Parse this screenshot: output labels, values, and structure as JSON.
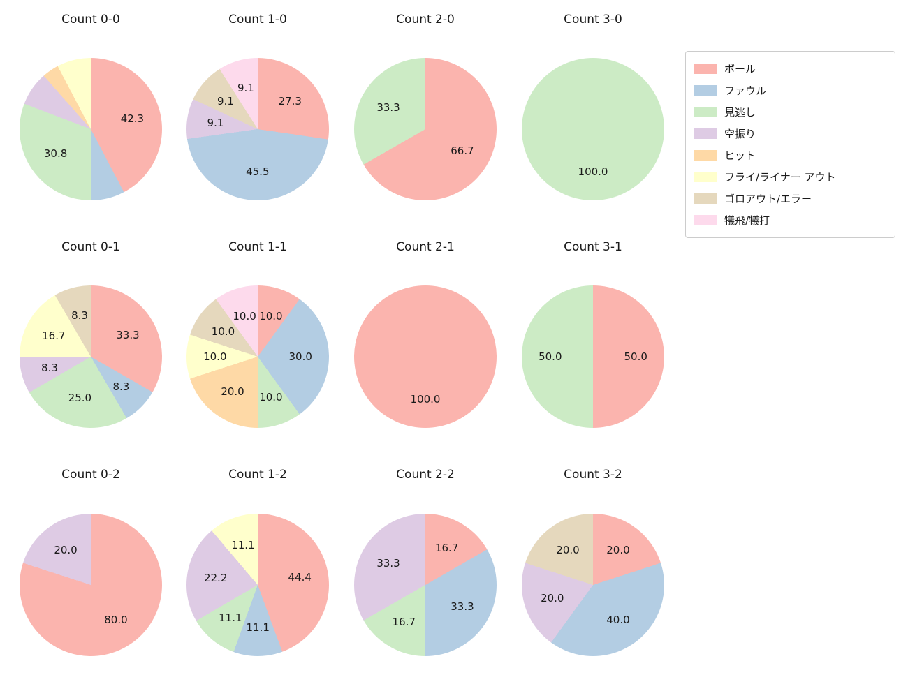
{
  "figure": {
    "background": "#ffffff",
    "text_color": "#1a1a1a"
  },
  "legend": {
    "items": [
      {
        "label": "ボール",
        "color": "#fbb4ae"
      },
      {
        "label": "ファウル",
        "color": "#b3cde3"
      },
      {
        "label": "見逃し",
        "color": "#ccebc5"
      },
      {
        "label": "空振り",
        "color": "#decbe4"
      },
      {
        "label": "ヒット",
        "color": "#fed9a6"
      },
      {
        "label": "フライ/ライナー アウト",
        "color": "#ffffcc"
      },
      {
        "label": "ゴロアウト/エラー",
        "color": "#e5d8bd"
      },
      {
        "label": "犠飛/犠打",
        "color": "#fddaec"
      }
    ]
  },
  "chart_data": [
    {
      "type": "pie",
      "title": "Count 0-0",
      "slices": [
        {
          "category": "ボール",
          "value": 42.3,
          "label": "42.3"
        },
        {
          "category": "ファウル",
          "value": 7.7,
          "label": ""
        },
        {
          "category": "見逃し",
          "value": 30.8,
          "label": "30.8"
        },
        {
          "category": "空振り",
          "value": 7.7,
          "label": ""
        },
        {
          "category": "ヒット",
          "value": 3.8,
          "label": ""
        },
        {
          "category": "フライ/ライナー アウト",
          "value": 7.7,
          "label": ""
        }
      ]
    },
    {
      "type": "pie",
      "title": "Count 1-0",
      "slices": [
        {
          "category": "ボール",
          "value": 27.3,
          "label": "27.3"
        },
        {
          "category": "ファウル",
          "value": 45.5,
          "label": "45.5"
        },
        {
          "category": "空振り",
          "value": 9.1,
          "label": "9.1"
        },
        {
          "category": "ゴロアウト/エラー",
          "value": 9.1,
          "label": "9.1"
        },
        {
          "category": "犠飛/犠打",
          "value": 9.1,
          "label": "9.1"
        }
      ]
    },
    {
      "type": "pie",
      "title": "Count 2-0",
      "slices": [
        {
          "category": "ボール",
          "value": 66.7,
          "label": "66.7"
        },
        {
          "category": "見逃し",
          "value": 33.3,
          "label": "33.3"
        }
      ]
    },
    {
      "type": "pie",
      "title": "Count 3-0",
      "slices": [
        {
          "category": "見逃し",
          "value": 100.0,
          "label": "100.0"
        }
      ]
    },
    {
      "type": "pie",
      "title": "Count 0-1",
      "slices": [
        {
          "category": "ボール",
          "value": 33.3,
          "label": "33.3"
        },
        {
          "category": "ファウル",
          "value": 8.3,
          "label": "8.3"
        },
        {
          "category": "見逃し",
          "value": 25.0,
          "label": "25.0"
        },
        {
          "category": "空振り",
          "value": 8.3,
          "label": "8.3"
        },
        {
          "category": "フライ/ライナー アウト",
          "value": 16.7,
          "label": "16.7"
        },
        {
          "category": "ゴロアウト/エラー",
          "value": 8.3,
          "label": "8.3"
        }
      ]
    },
    {
      "type": "pie",
      "title": "Count 1-1",
      "slices": [
        {
          "category": "ボール",
          "value": 10.0,
          "label": "10.0"
        },
        {
          "category": "ファウル",
          "value": 30.0,
          "label": "30.0"
        },
        {
          "category": "見逃し",
          "value": 10.0,
          "label": "10.0"
        },
        {
          "category": "ヒット",
          "value": 20.0,
          "label": "20.0"
        },
        {
          "category": "フライ/ライナー アウト",
          "value": 10.0,
          "label": "10.0"
        },
        {
          "category": "ゴロアウト/エラー",
          "value": 10.0,
          "label": "10.0"
        },
        {
          "category": "犠飛/犠打",
          "value": 10.0,
          "label": "10.0"
        }
      ]
    },
    {
      "type": "pie",
      "title": "Count 2-1",
      "slices": [
        {
          "category": "ボール",
          "value": 100.0,
          "label": "100.0"
        }
      ]
    },
    {
      "type": "pie",
      "title": "Count 3-1",
      "slices": [
        {
          "category": "ボール",
          "value": 50.0,
          "label": "50.0"
        },
        {
          "category": "見逃し",
          "value": 50.0,
          "label": "50.0"
        }
      ]
    },
    {
      "type": "pie",
      "title": "Count 0-2",
      "slices": [
        {
          "category": "ボール",
          "value": 80.0,
          "label": "80.0"
        },
        {
          "category": "空振り",
          "value": 20.0,
          "label": "20.0"
        }
      ]
    },
    {
      "type": "pie",
      "title": "Count 1-2",
      "slices": [
        {
          "category": "ボール",
          "value": 44.4,
          "label": "44.4"
        },
        {
          "category": "ファウル",
          "value": 11.1,
          "label": "11.1"
        },
        {
          "category": "見逃し",
          "value": 11.1,
          "label": "11.1"
        },
        {
          "category": "空振り",
          "value": 22.2,
          "label": "22.2"
        },
        {
          "category": "フライ/ライナー アウト",
          "value": 11.1,
          "label": "11.1"
        }
      ]
    },
    {
      "type": "pie",
      "title": "Count 2-2",
      "slices": [
        {
          "category": "ボール",
          "value": 16.7,
          "label": "16.7"
        },
        {
          "category": "ファウル",
          "value": 33.3,
          "label": "33.3"
        },
        {
          "category": "見逃し",
          "value": 16.7,
          "label": "16.7"
        },
        {
          "category": "空振り",
          "value": 33.3,
          "label": "33.3"
        }
      ]
    },
    {
      "type": "pie",
      "title": "Count 3-2",
      "slices": [
        {
          "category": "ボール",
          "value": 20.0,
          "label": "20.0"
        },
        {
          "category": "ファウル",
          "value": 40.0,
          "label": "40.0"
        },
        {
          "category": "空振り",
          "value": 20.0,
          "label": "20.0"
        },
        {
          "category": "ゴロアウト/エラー",
          "value": 20.0,
          "label": "20.0"
        }
      ]
    }
  ]
}
